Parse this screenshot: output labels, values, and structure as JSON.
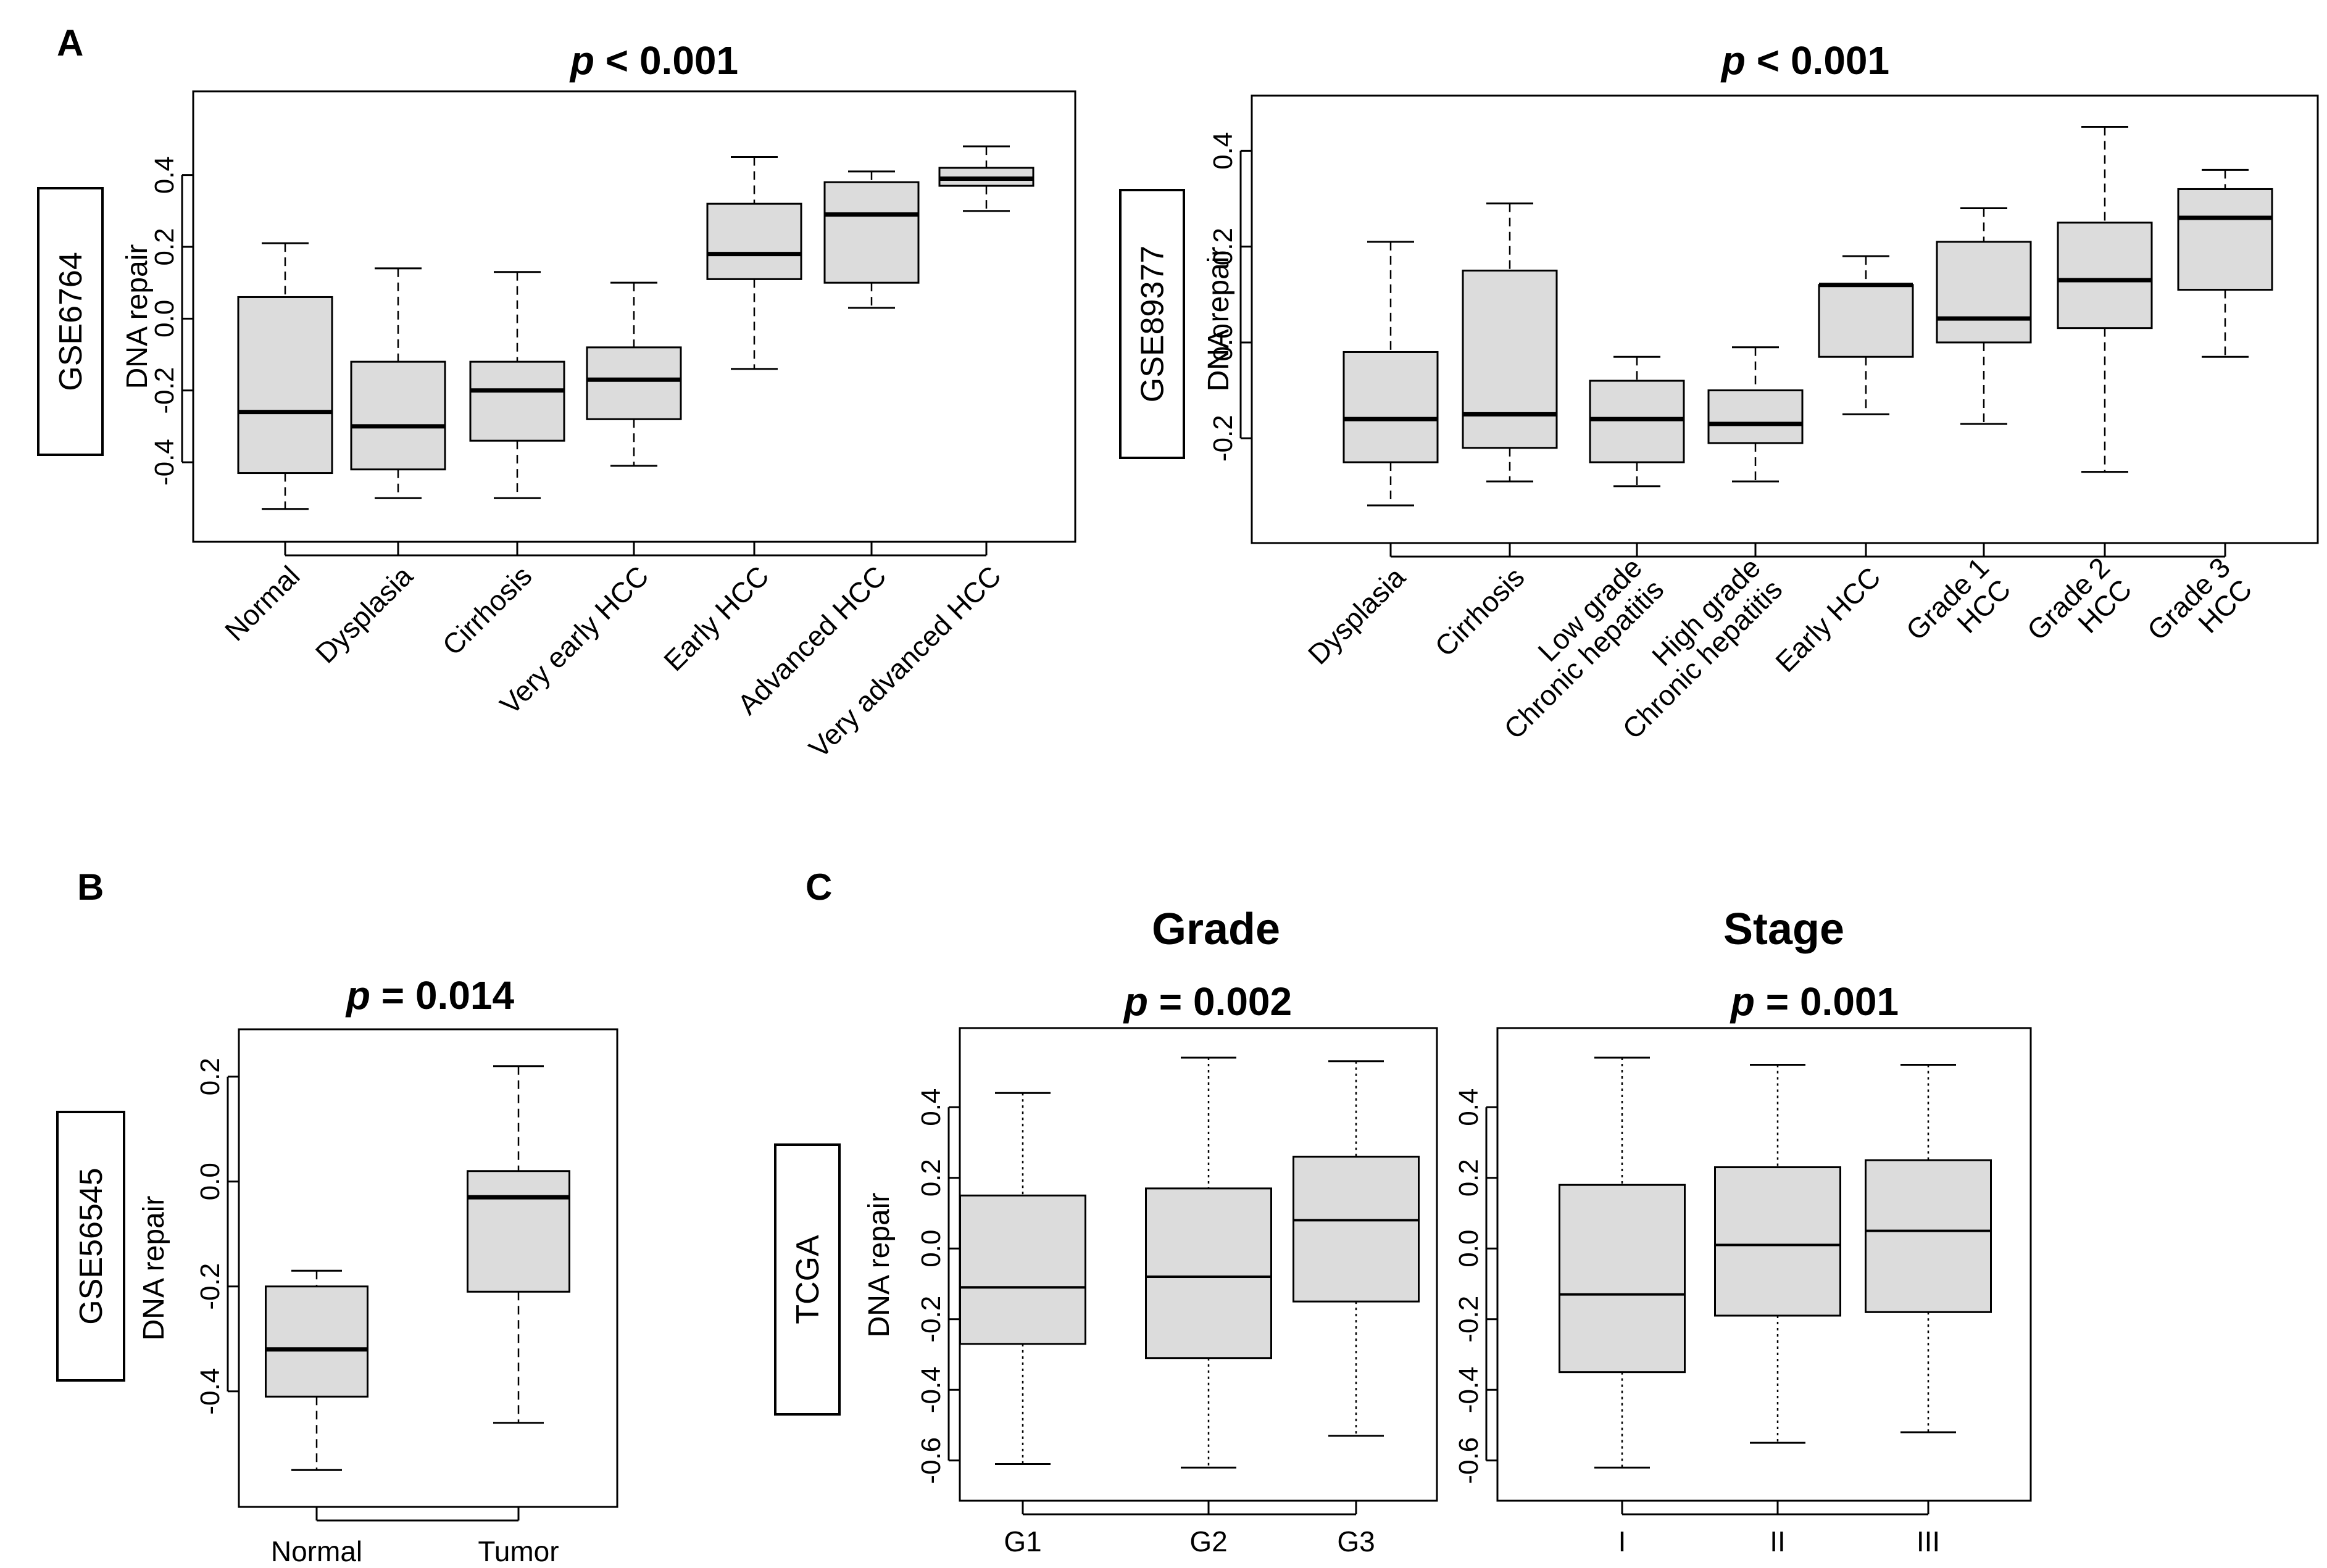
{
  "panels": [
    {
      "id": "panel-A",
      "letter": "A"
    },
    {
      "id": "panel-B",
      "letter": "B"
    },
    {
      "id": "panel-C",
      "letter": "C"
    }
  ],
  "column_titles": {
    "grade": "Grade",
    "stage": "Stage"
  },
  "chart_data": [
    {
      "type": "boxplot",
      "panel": "A",
      "dataset": "GSE6764",
      "title_prefix": "p",
      "title_rest": " < 0.001",
      "ylabel": "DNA repair",
      "ylim": [
        -0.57,
        0.53
      ],
      "yticks": [
        -0.4,
        -0.2,
        0.0,
        0.2,
        0.4
      ],
      "ytick_labels": [
        "-0.4",
        "-0.2",
        "0.0",
        "0.2",
        "0.4"
      ],
      "categories": [
        [
          "Normal"
        ],
        [
          "Dysplasia"
        ],
        [
          "Cirrhosis"
        ],
        [
          "Very early HCC"
        ],
        [
          "Early HCC"
        ],
        [
          "Advanced HCC"
        ],
        [
          "Very advanced HCC"
        ]
      ],
      "boxes": [
        {
          "whislo": -0.53,
          "q1": -0.43,
          "med": -0.26,
          "q3": 0.06,
          "whishi": 0.21
        },
        {
          "whislo": -0.5,
          "q1": -0.42,
          "med": -0.3,
          "q3": -0.12,
          "whishi": 0.14
        },
        {
          "whislo": -0.5,
          "q1": -0.34,
          "med": -0.2,
          "q3": -0.12,
          "whishi": 0.13
        },
        {
          "whislo": -0.41,
          "q1": -0.28,
          "med": -0.17,
          "q3": -0.08,
          "whishi": 0.1
        },
        {
          "whislo": -0.14,
          "q1": 0.11,
          "med": 0.18,
          "q3": 0.32,
          "whishi": 0.45
        },
        {
          "whislo": 0.03,
          "q1": 0.1,
          "med": 0.29,
          "q3": 0.38,
          "whishi": 0.41
        },
        {
          "whislo": 0.3,
          "q1": 0.37,
          "med": 0.39,
          "q3": 0.42,
          "whishi": 0.48
        }
      ]
    },
    {
      "type": "boxplot",
      "panel": "A",
      "dataset": "GSE89377",
      "title_prefix": "p",
      "title_rest": " < 0.001",
      "ylabel": "DNA repair",
      "ylim": [
        -0.38,
        0.47
      ],
      "yticks": [
        -0.2,
        0.0,
        0.2,
        0.4
      ],
      "ytick_labels": [
        "-0.2",
        "0.0",
        "0.2",
        "0.4"
      ],
      "categories": [
        [
          "Dysplasia"
        ],
        [
          "Cirrhosis"
        ],
        [
          "Low grade",
          "Chronic hepatitis"
        ],
        [
          "High grade",
          "Chronic hepatitis"
        ],
        [
          "Early HCC"
        ],
        [
          "Grade 1",
          "HCC"
        ],
        [
          "Grade 2",
          "HCC"
        ],
        [
          "Grade 3",
          "HCC"
        ]
      ],
      "boxes": [
        {
          "whislo": -0.34,
          "q1": -0.25,
          "med": -0.16,
          "q3": -0.02,
          "whishi": 0.21
        },
        {
          "whislo": -0.29,
          "q1": -0.22,
          "med": -0.15,
          "q3": 0.15,
          "whishi": 0.29
        },
        {
          "whislo": -0.3,
          "q1": -0.25,
          "med": -0.16,
          "q3": -0.08,
          "whishi": -0.03
        },
        {
          "whislo": -0.29,
          "q1": -0.21,
          "med": -0.17,
          "q3": -0.1,
          "whishi": -0.01
        },
        {
          "whislo": -0.15,
          "q1": -0.03,
          "med": 0.12,
          "q3": 0.12,
          "whishi": 0.18
        },
        {
          "whislo": -0.17,
          "q1": 0.0,
          "med": 0.05,
          "q3": 0.21,
          "whishi": 0.28
        },
        {
          "whislo": -0.27,
          "q1": 0.03,
          "med": 0.13,
          "q3": 0.25,
          "whishi": 0.45
        },
        {
          "whislo": -0.03,
          "q1": 0.11,
          "med": 0.26,
          "q3": 0.32,
          "whishi": 0.36
        }
      ]
    },
    {
      "type": "boxplot",
      "panel": "B",
      "dataset": "GSE56545",
      "title_prefix": "p",
      "title_rest": " = 0.014",
      "ylabel": "DNA repair",
      "ylim": [
        -0.585,
        0.255
      ],
      "yticks": [
        -0.4,
        -0.2,
        0.0,
        0.2
      ],
      "ytick_labels": [
        "-0.4",
        "-0.2",
        "0.0",
        "0.2"
      ],
      "categories": [
        [
          "Normal"
        ],
        [
          "Tumor"
        ]
      ],
      "boxes": [
        {
          "whislo": -0.55,
          "q1": -0.41,
          "med": -0.32,
          "q3": -0.2,
          "whishi": -0.17
        },
        {
          "whislo": -0.46,
          "q1": -0.21,
          "med": -0.03,
          "q3": 0.02,
          "whishi": 0.22
        }
      ]
    },
    {
      "type": "boxplot",
      "panel": "C",
      "dataset": "TCGA",
      "title_prefix": "p",
      "title_rest": " = 0.002",
      "ylabel": "DNA repair",
      "ylim": [
        -0.665,
        0.575
      ],
      "yticks": [
        -0.6,
        -0.4,
        -0.2,
        0.0,
        0.2,
        0.4
      ],
      "ytick_labels": [
        "-0.6",
        "-0.4",
        "-0.2",
        "0.0",
        "0.2",
        "0.4"
      ],
      "categories": [
        [
          "G1"
        ],
        [
          "G2"
        ],
        [
          "G3"
        ]
      ],
      "boxes": [
        {
          "whislo": -0.61,
          "q1": -0.27,
          "med": -0.11,
          "q3": 0.15,
          "whishi": 0.44
        },
        {
          "whislo": -0.62,
          "q1": -0.31,
          "med": -0.08,
          "q3": 0.17,
          "whishi": 0.54
        },
        {
          "whislo": -0.53,
          "q1": -0.15,
          "med": 0.08,
          "q3": 0.26,
          "whishi": 0.53
        }
      ]
    },
    {
      "type": "boxplot",
      "panel": "C",
      "dataset": "TCGA",
      "title_prefix": "p",
      "title_rest": " = 0.001",
      "ylabel": "",
      "ylim": [
        -0.665,
        0.575
      ],
      "yticks": [
        -0.6,
        -0.4,
        -0.2,
        0.0,
        0.2,
        0.4
      ],
      "ytick_labels": [
        "-0.6",
        "-0.4",
        "-0.2",
        "0.0",
        "0.2",
        "0.4"
      ],
      "categories": [
        [
          "I"
        ],
        [
          "II"
        ],
        [
          "III"
        ]
      ],
      "boxes": [
        {
          "whislo": -0.62,
          "q1": -0.35,
          "med": -0.13,
          "q3": 0.18,
          "whishi": 0.54
        },
        {
          "whislo": -0.55,
          "q1": -0.19,
          "med": 0.01,
          "q3": 0.23,
          "whishi": 0.52
        },
        {
          "whislo": -0.52,
          "q1": -0.18,
          "med": 0.05,
          "q3": 0.25,
          "whishi": 0.52
        }
      ]
    }
  ]
}
